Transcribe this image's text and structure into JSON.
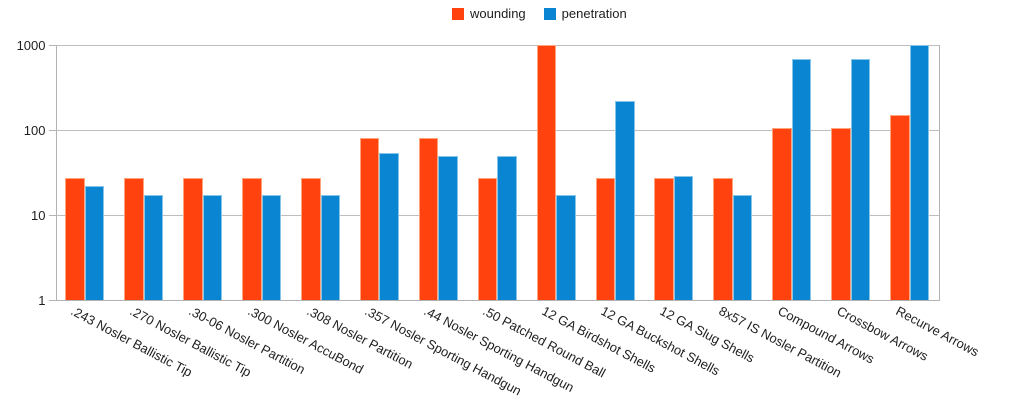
{
  "chart_data": {
    "type": "bar",
    "title": "",
    "scale_y": "log",
    "ylim": [
      1,
      1000
    ],
    "y_ticks": [
      "1000",
      "100",
      "10",
      "1"
    ],
    "grid": "horizontal-log-decades",
    "legend_position": "top-center",
    "categories": [
      ".243 Nosler Ballistic Tip",
      ".270 Nosler Ballistic Tip",
      ".30-06 Nosler Partition",
      ".300 Nosler AccuBond",
      ".308 Nosler Partition",
      ".357 Nosler Sporting Handgun",
      ".44 Nosler Sporting Handgun",
      ".50 Patched Round Ball",
      "12 GA Birdshot Shells",
      "12 GA Buckshot Shells",
      "12 GA Slug Shells",
      "8x57 IS Nosler Partition",
      "Compound Arrows",
      "Crossbow Arrows",
      "Recurve Arrows"
    ],
    "series": [
      {
        "name": "wounding",
        "color": "#ff420e",
        "border_color": "#ffa57d",
        "values": [
          27,
          27,
          27,
          27,
          27,
          80,
          80,
          27,
          1000,
          27,
          27,
          27,
          107,
          107,
          150
        ]
      },
      {
        "name": "penetration",
        "color": "#0a85d1",
        "border_color": "#86c4ea",
        "values": [
          22,
          17,
          17,
          17,
          17,
          54,
          49,
          49,
          17,
          220,
          29,
          17,
          690,
          690,
          1000
        ]
      }
    ],
    "colors": {
      "axis": "#b3b3b3",
      "gridline": "#bdbdbd",
      "text": "#1e1e1e",
      "background": "#ffffff"
    }
  }
}
